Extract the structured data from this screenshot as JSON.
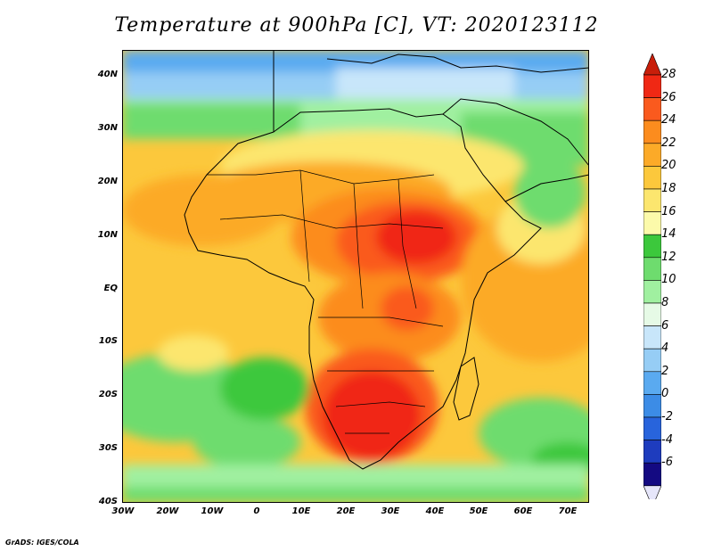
{
  "title": "Temperature at 900hPa [C], VT: 2020123112",
  "footer": "GrADS: IGES/COLA",
  "map": {
    "lat_labels": [
      "40N",
      "30N",
      "20N",
      "10N",
      "EQ",
      "10S",
      "20S",
      "30S",
      "40S"
    ],
    "lon_labels": [
      "30W",
      "20W",
      "10W",
      "0",
      "10E",
      "20E",
      "30E",
      "40E",
      "50E",
      "60E",
      "70E"
    ],
    "lat_range": [
      -40,
      45
    ],
    "lon_range": [
      -30,
      75
    ]
  },
  "legend": {
    "levels": [
      "28",
      "26",
      "24",
      "22",
      "20",
      "18",
      "16",
      "14",
      "12",
      "10",
      "8",
      "6",
      "4",
      "2",
      "0",
      "-2",
      "-4",
      "-6"
    ],
    "colors": [
      "#f02814",
      "#fa5a1e",
      "#fc8c1e",
      "#fcaa28",
      "#fcc83c",
      "#fce66e",
      "#fcfaaa",
      "#3cc83c",
      "#6edc6e",
      "#a0f0a0",
      "#e6fae6",
      "#c8e6fa",
      "#96cdf5",
      "#5aaaf0",
      "#3c8ce6",
      "#2864dc",
      "#1e3cbe",
      "#140a82"
    ],
    "top_cap_color": "#c81e0a",
    "bottom_cap_color": "#e6e6fa"
  }
}
